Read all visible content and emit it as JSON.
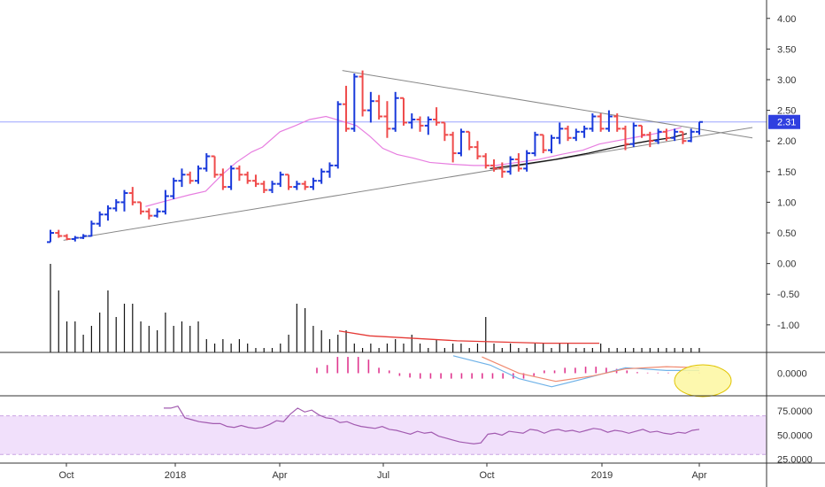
{
  "chart_data": [
    {
      "type": "ohlc",
      "panel": "price",
      "y_ticks": [
        "4.00",
        "3.50",
        "3.00",
        "2.50",
        "2.00",
        "1.50",
        "1.00",
        "0.50",
        "0.00",
        "-0.50",
        "-1.00"
      ],
      "ylim": [
        -1.45,
        4.3
      ],
      "last_price": "2.31",
      "colors": {
        "up": "#1a3adb",
        "down": "#ef4b4b",
        "ma_short": "#e77ee0",
        "ma_long": "#111111",
        "trendline": "#888888",
        "last_line": "#9aa4ff",
        "badge": "#2f3fe0"
      },
      "bars": [
        [
          0.35,
          0.55,
          0.35,
          0.5
        ],
        [
          0.5,
          0.55,
          0.42,
          0.45
        ],
        [
          0.45,
          0.48,
          0.38,
          0.4
        ],
        [
          0.4,
          0.45,
          0.36,
          0.42
        ],
        [
          0.42,
          0.48,
          0.4,
          0.45
        ],
        [
          0.45,
          0.7,
          0.44,
          0.65
        ],
        [
          0.65,
          0.85,
          0.6,
          0.8
        ],
        [
          0.8,
          0.95,
          0.7,
          0.9
        ],
        [
          0.9,
          1.05,
          0.85,
          1.0
        ],
        [
          1.0,
          1.2,
          0.85,
          1.15
        ],
        [
          1.15,
          1.25,
          0.95,
          1.0
        ],
        [
          1.0,
          1.0,
          0.8,
          0.85
        ],
        [
          0.85,
          0.9,
          0.72,
          0.78
        ],
        [
          0.78,
          0.9,
          0.75,
          0.85
        ],
        [
          0.85,
          1.2,
          0.8,
          1.1
        ],
        [
          1.1,
          1.4,
          1.05,
          1.35
        ],
        [
          1.35,
          1.55,
          1.25,
          1.45
        ],
        [
          1.45,
          1.5,
          1.3,
          1.35
        ],
        [
          1.35,
          1.6,
          1.3,
          1.55
        ],
        [
          1.55,
          1.8,
          1.5,
          1.75
        ],
        [
          1.75,
          1.75,
          1.4,
          1.45
        ],
        [
          1.45,
          1.55,
          1.2,
          1.25
        ],
        [
          1.25,
          1.6,
          1.2,
          1.55
        ],
        [
          1.55,
          1.6,
          1.35,
          1.45
        ],
        [
          1.45,
          1.5,
          1.3,
          1.35
        ],
        [
          1.35,
          1.45,
          1.25,
          1.3
        ],
        [
          1.3,
          1.35,
          1.15,
          1.2
        ],
        [
          1.2,
          1.35,
          1.15,
          1.3
        ],
        [
          1.3,
          1.5,
          1.25,
          1.45
        ],
        [
          1.45,
          1.45,
          1.2,
          1.25
        ],
        [
          1.25,
          1.35,
          1.2,
          1.3
        ],
        [
          1.3,
          1.35,
          1.2,
          1.25
        ],
        [
          1.25,
          1.4,
          1.2,
          1.35
        ],
        [
          1.35,
          1.55,
          1.3,
          1.5
        ],
        [
          1.5,
          1.65,
          1.4,
          1.6
        ],
        [
          1.6,
          2.65,
          1.55,
          2.6
        ],
        [
          2.6,
          2.9,
          2.15,
          2.2
        ],
        [
          2.2,
          3.1,
          2.15,
          3.05
        ],
        [
          3.05,
          3.15,
          2.4,
          2.5
        ],
        [
          2.5,
          2.8,
          2.3,
          2.65
        ],
        [
          2.65,
          2.75,
          2.35,
          2.4
        ],
        [
          2.4,
          2.65,
          2.05,
          2.2
        ],
        [
          2.2,
          2.8,
          2.15,
          2.7
        ],
        [
          2.7,
          2.7,
          2.25,
          2.3
        ],
        [
          2.3,
          2.45,
          2.2,
          2.35
        ],
        [
          2.35,
          2.4,
          2.15,
          2.25
        ],
        [
          2.25,
          2.4,
          2.1,
          2.35
        ],
        [
          2.35,
          2.55,
          2.25,
          2.3
        ],
        [
          2.3,
          2.3,
          2.0,
          2.1
        ],
        [
          2.1,
          2.15,
          1.65,
          1.8
        ],
        [
          1.8,
          2.2,
          1.75,
          2.15
        ],
        [
          2.15,
          2.15,
          1.85,
          1.9
        ],
        [
          1.9,
          2.0,
          1.7,
          1.75
        ],
        [
          1.75,
          1.8,
          1.55,
          1.6
        ],
        [
          1.6,
          1.7,
          1.5,
          1.55
        ],
        [
          1.55,
          1.65,
          1.4,
          1.5
        ],
        [
          1.5,
          1.75,
          1.45,
          1.7
        ],
        [
          1.7,
          1.8,
          1.5,
          1.55
        ],
        [
          1.55,
          1.85,
          1.5,
          1.8
        ],
        [
          1.8,
          2.15,
          1.75,
          2.1
        ],
        [
          2.1,
          2.1,
          1.8,
          1.85
        ],
        [
          1.85,
          2.1,
          1.8,
          2.05
        ],
        [
          2.05,
          2.3,
          1.95,
          2.2
        ],
        [
          2.2,
          2.25,
          2.0,
          2.05
        ],
        [
          2.05,
          2.2,
          2.0,
          2.15
        ],
        [
          2.15,
          2.25,
          2.05,
          2.2
        ],
        [
          2.2,
          2.45,
          2.15,
          2.4
        ],
        [
          2.4,
          2.45,
          2.15,
          2.2
        ],
        [
          2.2,
          2.5,
          2.15,
          2.4
        ],
        [
          2.4,
          2.45,
          2.15,
          2.2
        ],
        [
          2.2,
          2.25,
          1.85,
          1.95
        ],
        [
          1.95,
          2.3,
          1.9,
          2.25
        ],
        [
          2.25,
          2.25,
          2.05,
          2.1
        ],
        [
          2.1,
          2.15,
          1.9,
          2.0
        ],
        [
          2.0,
          2.2,
          1.95,
          2.15
        ],
        [
          2.15,
          2.2,
          2.0,
          2.05
        ],
        [
          2.05,
          2.2,
          2.0,
          2.15
        ],
        [
          2.15,
          2.15,
          1.95,
          2.0
        ],
        [
          2.0,
          2.2,
          1.98,
          2.15
        ],
        [
          2.15,
          2.31,
          2.1,
          2.31
        ]
      ],
      "ma_short": [
        [
          0.95,
          0.93
        ],
        [
          1.05,
          0.98
        ],
        [
          1.2,
          1.05
        ],
        [
          1.35,
          1.12
        ],
        [
          1.5,
          1.18
        ],
        [
          1.65,
          1.45
        ],
        [
          1.78,
          1.65
        ],
        [
          1.92,
          1.82
        ],
        [
          2.02,
          1.9
        ],
        [
          2.18,
          2.15
        ],
        [
          2.32,
          2.25
        ],
        [
          2.45,
          2.35
        ],
        [
          2.6,
          2.4
        ],
        [
          2.75,
          2.32
        ],
        [
          2.88,
          2.25
        ],
        [
          3.0,
          2.08
        ],
        [
          3.12,
          1.88
        ],
        [
          3.25,
          1.78
        ],
        [
          3.4,
          1.72
        ],
        [
          3.55,
          1.65
        ],
        [
          3.75,
          1.62
        ],
        [
          3.95,
          1.6
        ],
        [
          4.15,
          1.6
        ],
        [
          4.35,
          1.65
        ],
        [
          4.55,
          1.7
        ],
        [
          4.75,
          1.78
        ],
        [
          4.95,
          1.85
        ],
        [
          5.1,
          1.95
        ],
        [
          5.25,
          2.0
        ],
        [
          5.4,
          2.05
        ],
        [
          5.55,
          2.1
        ],
        [
          5.7,
          2.15
        ],
        [
          5.85,
          2.22
        ]
      ],
      "ma_long": [
        [
          4.1,
          1.55
        ],
        [
          4.4,
          1.62
        ],
        [
          4.7,
          1.7
        ],
        [
          5.0,
          1.8
        ],
        [
          5.3,
          1.92
        ],
        [
          5.55,
          2.0
        ],
        [
          5.75,
          2.05
        ],
        [
          5.9,
          2.12
        ]
      ],
      "trendlines": [
        {
          "from": [
            0.2,
            0.38
          ],
          "to": [
            6.5,
            2.22
          ]
        },
        {
          "from": [
            2.75,
            3.15
          ],
          "to": [
            6.5,
            2.05
          ]
        }
      ],
      "volume": [
        1.0,
        0.7,
        0.35,
        0.35,
        0.2,
        0.3,
        0.45,
        0.7,
        0.4,
        0.55,
        0.55,
        0.35,
        0.3,
        0.25,
        0.45,
        0.3,
        0.35,
        0.3,
        0.35,
        0.15,
        0.1,
        0.15,
        0.1,
        0.15,
        0.1,
        0.05,
        0.05,
        0.05,
        0.1,
        0.2,
        0.55,
        0.5,
        0.3,
        0.25,
        0.15,
        0.2,
        0.25,
        0.1,
        0.05,
        0.1,
        0.05,
        0.1,
        0.15,
        0.1,
        0.2,
        0.1,
        0.05,
        0.15,
        0.05,
        0.1,
        0.1,
        0.05,
        0.1,
        0.4,
        0.1,
        0.05,
        0.1,
        0.05,
        0.05,
        0.1,
        0.1,
        0.05,
        0.1,
        0.1,
        0.05,
        0.05,
        0.05,
        0.1,
        0.05,
        0.05,
        0.05,
        0.05,
        0.05,
        0.05,
        0.05,
        0.05,
        0.05,
        0.05,
        0.05,
        0.05
      ],
      "volume_ma": [
        [
          0.52,
          -1.1
        ],
        [
          0.8,
          -1.18
        ],
        [
          1.2,
          -1.22
        ],
        [
          1.6,
          -1.26
        ],
        [
          2.0,
          -1.28
        ],
        [
          2.4,
          -1.3
        ],
        [
          2.9,
          -1.3
        ]
      ]
    },
    {
      "type": "bar",
      "panel": "macd",
      "y_ticks": [
        "0.0000"
      ],
      "ylim": [
        -0.4,
        0.35
      ],
      "colors": {
        "hist": "#e0368f",
        "macd": "#6fb2e8",
        "signal": "#f08a70",
        "highlight_fill": "#fdf7a0",
        "highlight_stroke": "#e0c300"
      },
      "histogram": [
        0.1,
        0.15,
        0.3,
        0.3,
        0.3,
        0.25,
        0.1,
        0.05,
        -0.05,
        -0.08,
        -0.1,
        -0.1,
        -0.1,
        -0.1,
        -0.1,
        -0.1,
        -0.1,
        -0.1,
        -0.1,
        -0.1,
        -0.1,
        -0.05,
        0.05,
        0.05,
        0.1,
        0.1,
        0.12,
        0.12,
        0.1,
        0.08,
        0.05,
        0.02,
        0.01,
        0.01,
        0.01,
        0.01,
        0.01,
        0.01
      ],
      "macd": [
        [
          0,
          0.32
        ],
        [
          0.45,
          0.15
        ],
        [
          0.8,
          -0.1
        ],
        [
          1.2,
          -0.25
        ],
        [
          1.6,
          -0.1
        ],
        [
          2.1,
          0.1
        ],
        [
          2.6,
          0.05
        ],
        [
          3.0,
          0.05
        ]
      ],
      "signal": [
        [
          0.35,
          0.3
        ],
        [
          0.8,
          0.0
        ],
        [
          1.25,
          -0.15
        ],
        [
          1.7,
          -0.05
        ],
        [
          2.1,
          0.08
        ],
        [
          2.6,
          0.12
        ],
        [
          3.0,
          0.1
        ]
      ]
    },
    {
      "type": "line",
      "panel": "rsi",
      "y_ticks": [
        "75.0000",
        "50.0000",
        "25.0000"
      ],
      "ylim": [
        22,
        88
      ],
      "band": [
        30,
        70
      ],
      "colors": {
        "line": "#a25bb0",
        "band": "#f1e0fb",
        "band_edge": "#c9a3e3"
      },
      "values": [
        78,
        78,
        80,
        68,
        66,
        64,
        63,
        62,
        62,
        59,
        58,
        60,
        58,
        57,
        58,
        61,
        65,
        64,
        72,
        78,
        74,
        76,
        71,
        68,
        67,
        63,
        64,
        61,
        59,
        58,
        57,
        59,
        56,
        55,
        53,
        51,
        54,
        52,
        53,
        49,
        47,
        45,
        43,
        42,
        41,
        42,
        51,
        52,
        50,
        54,
        53,
        52,
        56,
        55,
        52,
        55,
        56,
        54,
        55,
        53,
        55,
        57,
        56,
        53,
        55,
        54,
        52,
        54,
        56,
        53,
        54,
        52,
        51,
        53,
        52,
        55,
        56
      ]
    }
  ],
  "x_axis": {
    "ticks": [
      "Oct",
      "2018",
      "Apr",
      "Jul",
      "Oct",
      "2019",
      "Apr"
    ]
  }
}
